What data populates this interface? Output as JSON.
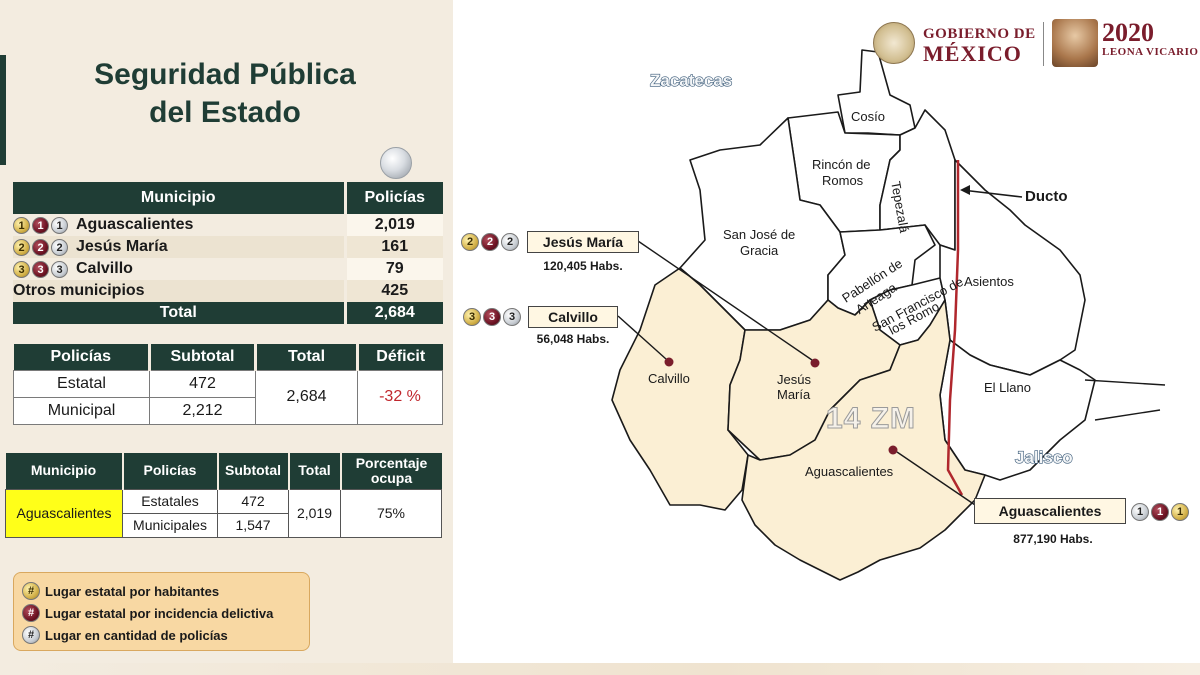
{
  "header": {
    "title_line1": "Seguridad Pública",
    "title_line2": "del Estado",
    "gob_line1": "GOBIERNO DE",
    "gob_line2": "MÉXICO",
    "year": "2020",
    "year_name": "LEONA VICARIO"
  },
  "table_municipios": {
    "headers": [
      "Municipio",
      "Policías"
    ],
    "rows": [
      {
        "badges": [
          "1",
          "1",
          "1"
        ],
        "name": "Aguascalientes",
        "value": "2,019"
      },
      {
        "badges": [
          "2",
          "2",
          "2"
        ],
        "name": "Jesús María",
        "value": "161"
      },
      {
        "badges": [
          "3",
          "3",
          "3"
        ],
        "name": "Calvillo",
        "value": "79"
      },
      {
        "badges": [],
        "name": "Otros municipios",
        "value": "425"
      }
    ],
    "total_label": "Total",
    "total_value": "2,684"
  },
  "table_policias": {
    "headers": [
      "Policías",
      "Subtotal",
      "Total",
      "Déficit"
    ],
    "rows": [
      {
        "label": "Estatal",
        "subtotal": "472"
      },
      {
        "label": "Municipal",
        "subtotal": "2,212"
      }
    ],
    "total": "2,684",
    "deficit": "-32 %"
  },
  "table_aguascalientes": {
    "headers": [
      "Municipio",
      "Policías",
      "Subtotal",
      "Total",
      "Porcentaje ocupa"
    ],
    "municipio": "Aguascalientes",
    "rows": [
      {
        "label": "Estatales",
        "subtotal": "472"
      },
      {
        "label": "Municipales",
        "subtotal": "1,547"
      }
    ],
    "total": "2,019",
    "porcentaje": "75%"
  },
  "legend": {
    "symbol": "#",
    "items": [
      {
        "label": "Lugar estatal por habitantes",
        "color": "gold"
      },
      {
        "label": "Lugar estatal por incidencia delictiva",
        "color": "red"
      },
      {
        "label": "Lugar en cantidad de policías",
        "color": "silver"
      }
    ]
  },
  "map": {
    "states": {
      "zacatecas": "Zacatecas",
      "jalisco": "Jalisco"
    },
    "municipios": {
      "cosio": "Cosío",
      "rincon_1": "Rincón de",
      "rincon_2": "Romos",
      "tepezala": "Tepezalá",
      "san_jose_1": "San José de",
      "san_jose_2": "Gracia",
      "pabellon_1": "Pabellón de",
      "pabellon_2": "Arteaga",
      "san_francisco_1": "San Francisco de",
      "san_francisco_2": "los Romo",
      "asientos": "Asientos",
      "el_llano": "El Llano",
      "calvillo": "Calvillo",
      "jesus_maria_1": "Jesús",
      "jesus_maria_2": "María",
      "aguascalientes": "Aguascalientes"
    },
    "zm_label": "14 ZM",
    "ducto_label": "Ducto",
    "callouts": {
      "jesus_maria": {
        "name": "Jesús María",
        "habs": "120,405 Habs.",
        "badges": [
          "2",
          "2",
          "2"
        ]
      },
      "calvillo": {
        "name": "Calvillo",
        "habs": "56,048 Habs.",
        "badges": [
          "3",
          "3",
          "3"
        ]
      },
      "aguascalientes": {
        "name": "Aguascalientes",
        "habs": "877,190 Habs.",
        "badges": [
          "1",
          "1",
          "1"
        ]
      }
    },
    "colors": {
      "highlight": "#fbefd4",
      "ducto": "#b0272d",
      "marker": "#7a1d2c"
    }
  }
}
